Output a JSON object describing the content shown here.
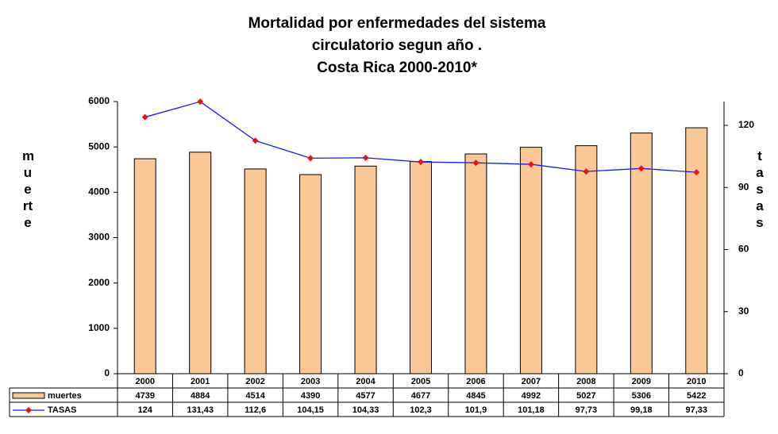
{
  "chart_data": {
    "type": "bar",
    "title_lines": [
      "Mortalidad por enfermedades del sistema",
      "circulatorio segun año .",
      "Costa Rica 2000-2010*"
    ],
    "ylabel": "muerte",
    "y2label": "tasas",
    "categories": [
      "2000",
      "2001",
      "2002",
      "2003",
      "2004",
      "2005",
      "2006",
      "2007",
      "2008",
      "2009",
      "2010"
    ],
    "series": [
      {
        "name": "muertes",
        "type": "bar",
        "color": "#fac896",
        "values": [
          4739,
          4884,
          4514,
          4390,
          4577,
          4677,
          4845,
          4992,
          5027,
          5306,
          5422
        ]
      },
      {
        "name": "TASAS",
        "type": "line",
        "axis": "y2",
        "color": "#1a1aff",
        "marker_color": "#ee1111",
        "values": [
          124,
          131.43,
          112.6,
          104.15,
          104.33,
          102.3,
          101.9,
          101.18,
          97.73,
          99.18,
          97.33
        ],
        "value_labels": [
          "124",
          "131,43",
          "112,6",
          "104,15",
          "104,33",
          "102,3",
          "101,9",
          "101,18",
          "97,73",
          "99,18",
          "97,33"
        ]
      }
    ],
    "ylim": [
      0,
      6000
    ],
    "yticks": [
      0,
      1000,
      2000,
      3000,
      4000,
      5000,
      6000
    ],
    "y2lim": [
      0,
      131.5
    ],
    "y2ticks": [
      0,
      30,
      60,
      90,
      120
    ]
  }
}
